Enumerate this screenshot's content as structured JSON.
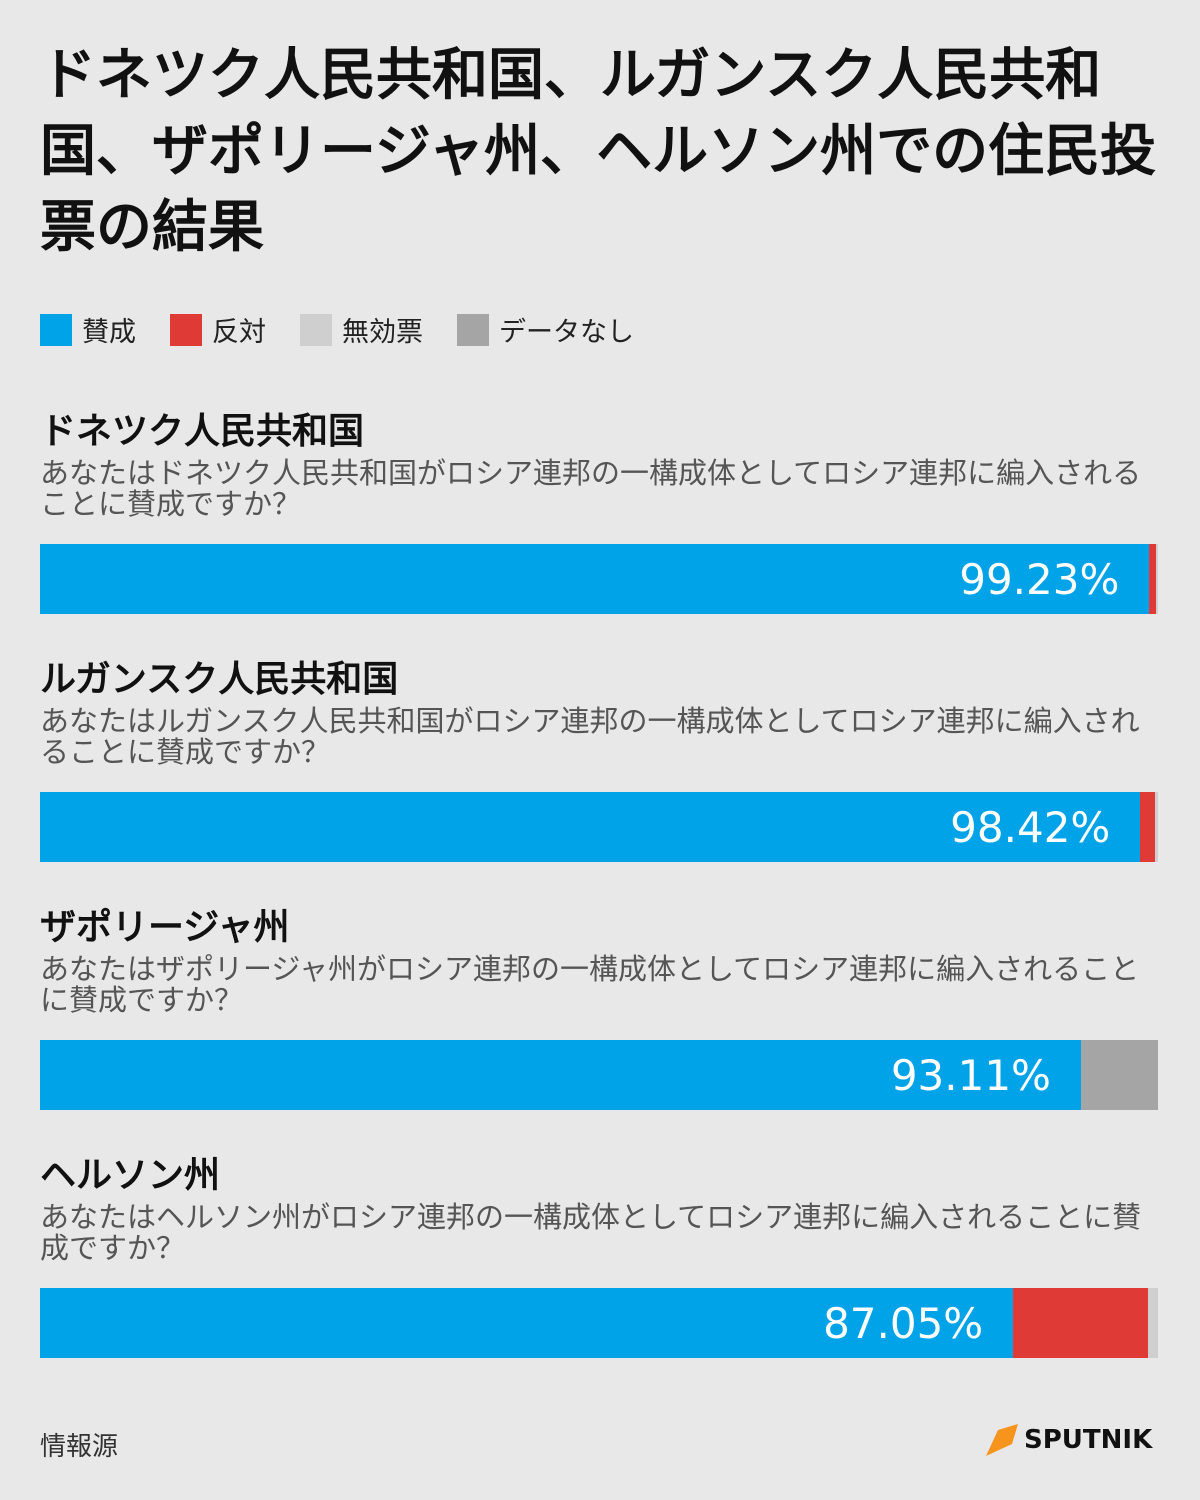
{
  "chart_data": {
    "type": "bar",
    "stacked": true,
    "orientation": "horizontal",
    "title": "ドネツク人民共和国、ルガンスク人民共和国、ザポリージャ州、ヘルソン州での住民投票の結果",
    "categories": [
      "ドネツク人民共和国",
      "ルガンスク人民共和国",
      "ザポリージャ州",
      "ヘルソン州"
    ],
    "questions": [
      "あなたはドネツク人民共和国がロシア連邦の一構成体としてロシア連邦に編入されることに賛成ですか？",
      "あなたはルガンスク人民共和国がロシア連邦の一構成体としてロシア連邦に編入されることに賛成ですか？",
      "あなたはザポリージャ州がロシア連邦の一構成体としてロシア連邦に編入されることに賛成ですか？",
      "あなたはヘルソン州がロシア連邦の一構成体としてロシア連邦に編入されることに賛成ですか？"
    ],
    "xlim": [
      0,
      100
    ],
    "series": [
      {
        "name": "賛成",
        "color": "#00a3e8",
        "values": [
          99.23,
          98.42,
          93.11,
          87.05
        ],
        "value_labels": [
          "99.23%",
          "98.42%",
          "93.11%",
          "87.05%"
        ]
      },
      {
        "name": "反対",
        "color": "#e03a36",
        "values": [
          0.62,
          1.31,
          null,
          12.05
        ]
      },
      {
        "name": "無効票",
        "color": "#cfcfcf",
        "values": [
          0.15,
          0.27,
          null,
          0.9
        ]
      },
      {
        "name": "データなし",
        "color": "#a5a5a5",
        "values": [
          null,
          null,
          6.89,
          null
        ]
      }
    ]
  },
  "source": "情報源",
  "logo": "SPUTNIK"
}
